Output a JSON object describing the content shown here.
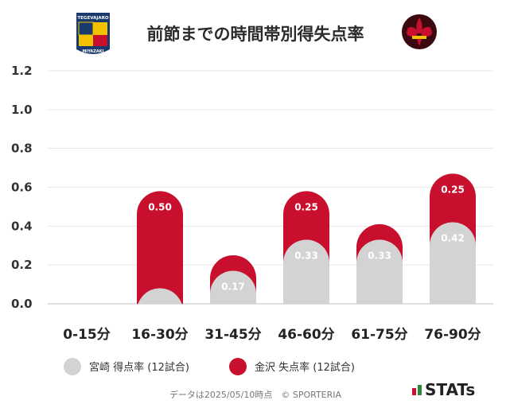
{
  "title": "前節までの時間帯別得失点率",
  "teams": {
    "home": {
      "name": "宮崎",
      "crest_text_top": "TEGEVAJARO",
      "crest_text_bottom": "MIYAZAKI"
    },
    "away": {
      "name": "金沢"
    }
  },
  "colors": {
    "home": "#d3d3d3",
    "away": "#c8102e",
    "home_label": "#f2f2f2",
    "away_label": "#ffffff"
  },
  "chart_data": {
    "type": "bar",
    "stacked": true,
    "categories": [
      "0-15分",
      "16-30分",
      "31-45分",
      "46-60分",
      "61-75分",
      "76-90分"
    ],
    "series": [
      {
        "name": "宮崎 得点率 (12試合)",
        "values": [
          0.0,
          0.08,
          0.17,
          0.33,
          0.33,
          0.42
        ],
        "labels": [
          "",
          "",
          "0.17",
          "0.33",
          "0.33",
          "0.42"
        ]
      },
      {
        "name": "金沢 失点率 (12試合)",
        "values": [
          0.0,
          0.5,
          0.08,
          0.25,
          0.08,
          0.25
        ],
        "labels": [
          "",
          "0.50",
          "",
          "0.25",
          "",
          "0.25"
        ]
      }
    ],
    "yticks": [
      "0.0",
      "0.2",
      "0.4",
      "0.6",
      "0.8",
      "1.0",
      "1.2"
    ],
    "ylim": [
      0,
      1.2
    ],
    "grid": true,
    "legend_position": "bottom"
  },
  "footer": {
    "note": "データは2025/05/10時点　© SPORTERIA"
  },
  "branding": {
    "stats": "STATs"
  }
}
